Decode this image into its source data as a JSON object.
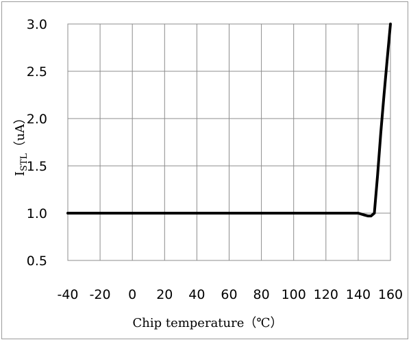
{
  "chart_data": {
    "type": "line",
    "title": "",
    "xlabel": "Chip temperature（℃）",
    "ylabel": {
      "symbol": "I",
      "subscript": "STL",
      "unit": "（uA）"
    },
    "xlim": [
      -40,
      160
    ],
    "ylim": [
      0.5,
      3.0
    ],
    "x_ticks": [
      -40,
      -20,
      0,
      20,
      40,
      60,
      80,
      100,
      120,
      140,
      160
    ],
    "y_ticks": [
      3.0,
      2.5,
      2.0,
      1.5,
      1.0,
      0.5
    ],
    "grid": true,
    "series": [
      {
        "color": "#000000",
        "x": [
          -40,
          -20,
          0,
          20,
          40,
          60,
          80,
          100,
          120,
          140,
          144,
          146,
          148,
          150,
          152,
          154,
          156,
          158,
          160
        ],
        "y": [
          1.0,
          1.0,
          1.0,
          1.0,
          1.0,
          1.0,
          1.0,
          1.0,
          1.0,
          1.0,
          0.98,
          0.97,
          0.97,
          1.0,
          1.4,
          1.85,
          2.25,
          2.63,
          3.0
        ]
      }
    ]
  }
}
